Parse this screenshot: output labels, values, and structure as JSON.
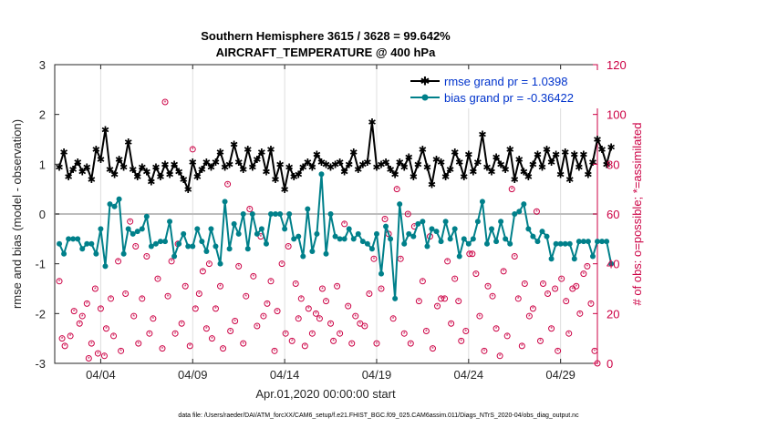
{
  "chart_data": {
    "type": "line",
    "title": "Southern Hemisphere 3615 / 3628 = 99.642%",
    "subtitle": "AIRCRAFT_TEMPERATURE @ 400 hPa",
    "xlabel": "Apr.01,2020 00:00:00 start",
    "ylabel": "rmse and bias (model - observation)",
    "ylabel_right": "# of obs: o=possible; *=assimilated",
    "footer": "data file: /Users/raeder/DAI/ATM_forcXX/CAM6_setup/f.e21.FHIST_BGC.f09_025.CAM6assim.011/Diags_NTrS_2020-04/obs_diag_output.nc",
    "xlim": [
      1.5,
      31.0
    ],
    "ylim": [
      -3,
      3
    ],
    "ylim_right": [
      0,
      120
    ],
    "x_ticks": [
      4,
      9,
      14,
      19,
      24,
      29
    ],
    "x_tick_labels": [
      "04/04",
      "04/09",
      "04/14",
      "04/19",
      "04/24",
      "04/29"
    ],
    "y_ticks": [
      -3,
      -2,
      -1,
      0,
      1,
      2,
      3
    ],
    "y_tick_labels": [
      "-3",
      "-2",
      "-1",
      "0",
      "1",
      "2",
      "3"
    ],
    "y_ticks_right": [
      0,
      20,
      40,
      60,
      80,
      100,
      120
    ],
    "y_tick_labels_right": [
      "0",
      "20",
      "40",
      "60",
      "80",
      "100",
      "120"
    ],
    "x_start": 1.75,
    "x_step": 0.25,
    "series": [
      {
        "name": "rmse grand pr = 1.0398",
        "color": "#000000",
        "marker": "star",
        "values": [
          0.95,
          1.25,
          0.75,
          0.9,
          1.05,
          0.85,
          0.95,
          0.7,
          1.3,
          1.1,
          1.7,
          0.9,
          0.8,
          1.1,
          0.95,
          1.45,
          0.9,
          0.75,
          0.95,
          0.85,
          0.65,
          0.95,
          0.75,
          1.0,
          0.8,
          1.0,
          0.85,
          0.7,
          0.5,
          1.05,
          0.75,
          0.9,
          1.05,
          0.95,
          1.05,
          1.25,
          0.95,
          1.0,
          1.4,
          1.05,
          0.9,
          1.3,
          0.95,
          1.1,
          1.25,
          0.85,
          1.3,
          0.7,
          1.0,
          0.5,
          0.95,
          0.75,
          0.8,
          0.95,
          1.05,
          0.95,
          1.2,
          1.05,
          1.0,
          0.95,
          1.0,
          1.05,
          0.85,
          1.0,
          1.25,
          0.9,
          1.0,
          1.05,
          1.85,
          0.95,
          1.0,
          1.05,
          0.9,
          0.8,
          1.05,
          0.95,
          1.15,
          0.75,
          1.0,
          1.3,
          0.95,
          0.6,
          1.1,
          1.05,
          0.75,
          0.9,
          1.25,
          1.05,
          0.75,
          1.2,
          0.85,
          1.05,
          1.6,
          0.95,
          0.85,
          1.15,
          1.0,
          0.9,
          1.3,
          0.7,
          1.1,
          0.85,
          0.75,
          1.0,
          1.2,
          0.95,
          1.3,
          1.05,
          1.2,
          0.8,
          1.25,
          0.7,
          1.2,
          0.95,
          1.2,
          0.8,
          1.05,
          1.5,
          1.3,
          1.0,
          1.35
        ]
      },
      {
        "name": "bias grand pr = -0.36422",
        "color": "#00808a",
        "marker": "circle",
        "values": [
          -0.6,
          -0.8,
          -0.5,
          -0.5,
          -0.5,
          -0.7,
          -0.6,
          -0.6,
          -0.8,
          -0.3,
          -1.05,
          0.2,
          0.15,
          0.3,
          -0.8,
          -0.3,
          -0.4,
          -0.35,
          -0.3,
          -0.05,
          -0.65,
          -0.6,
          -0.55,
          -0.55,
          -0.15,
          -0.85,
          -0.6,
          -0.4,
          -0.65,
          -0.65,
          -0.3,
          -0.55,
          -0.75,
          -0.3,
          -0.65,
          -1.0,
          0.25,
          -0.7,
          -0.2,
          -0.4,
          0.0,
          -0.7,
          0.0,
          -0.4,
          -0.3,
          -0.6,
          0.0,
          0.0,
          0.0,
          -0.3,
          0.0,
          -0.5,
          -0.45,
          -0.85,
          0.1,
          -0.75,
          -0.4,
          0.8,
          -0.8,
          0.0,
          -0.45,
          -0.5,
          -0.5,
          -0.3,
          -0.5,
          -0.4,
          -0.55,
          -0.6,
          -0.7,
          -0.4,
          -1.2,
          -0.25,
          -0.5,
          -1.7,
          0.2,
          -0.6,
          -0.4,
          -0.45,
          -0.2,
          -0.15,
          -0.65,
          -0.3,
          -0.35,
          -0.55,
          -0.15,
          -0.5,
          -0.3,
          -0.85,
          -0.5,
          -0.6,
          -0.5,
          -0.15,
          0.25,
          -0.6,
          -0.3,
          -0.55,
          -0.15,
          -0.5,
          -0.6,
          0.0,
          0.05,
          0.2,
          -0.3,
          -0.45,
          -0.55,
          -0.35,
          -0.45,
          -0.9,
          -0.6,
          -0.6,
          -0.6,
          -0.6,
          -0.9,
          -0.55,
          -0.55,
          -0.55,
          -0.85,
          -0.55,
          -0.55,
          -0.55,
          -1.0
        ]
      }
    ],
    "obs_possible": [
      [
        1.75,
        33
      ],
      [
        1.9,
        10
      ],
      [
        2.05,
        7
      ],
      [
        2.35,
        11
      ],
      [
        2.55,
        21
      ],
      [
        2.85,
        16
      ],
      [
        3.0,
        19
      ],
      [
        3.25,
        24
      ],
      [
        3.35,
        2
      ],
      [
        3.5,
        8
      ],
      [
        3.7,
        30
      ],
      [
        3.85,
        4
      ],
      [
        4.0,
        22
      ],
      [
        4.2,
        3
      ],
      [
        4.3,
        14
      ],
      [
        4.55,
        26
      ],
      [
        4.7,
        11
      ],
      [
        4.95,
        41
      ],
      [
        5.1,
        5
      ],
      [
        5.35,
        28
      ],
      [
        5.6,
        57
      ],
      [
        5.8,
        19
      ],
      [
        5.9,
        47
      ],
      [
        6.05,
        8
      ],
      [
        6.25,
        26
      ],
      [
        6.5,
        43
      ],
      [
        6.65,
        12
      ],
      [
        6.85,
        18
      ],
      [
        7.1,
        34
      ],
      [
        7.35,
        6
      ],
      [
        7.5,
        105
      ],
      [
        7.65,
        27
      ],
      [
        7.85,
        41
      ],
      [
        8.05,
        12
      ],
      [
        8.2,
        48
      ],
      [
        8.4,
        16
      ],
      [
        8.6,
        31
      ],
      [
        8.85,
        7
      ],
      [
        9.0,
        86
      ],
      [
        9.15,
        22
      ],
      [
        9.35,
        28
      ],
      [
        9.55,
        37
      ],
      [
        9.75,
        14
      ],
      [
        9.9,
        40
      ],
      [
        10.05,
        10
      ],
      [
        10.25,
        22
      ],
      [
        10.5,
        31
      ],
      [
        10.65,
        6
      ],
      [
        10.9,
        72
      ],
      [
        11.05,
        13
      ],
      [
        11.3,
        17
      ],
      [
        11.5,
        39
      ],
      [
        11.75,
        8
      ],
      [
        11.9,
        27
      ],
      [
        12.1,
        62
      ],
      [
        12.3,
        35
      ],
      [
        12.5,
        15
      ],
      [
        12.7,
        51
      ],
      [
        12.85,
        19
      ],
      [
        13.05,
        24
      ],
      [
        13.25,
        33
      ],
      [
        13.45,
        5
      ],
      [
        13.6,
        21
      ],
      [
        13.85,
        40
      ],
      [
        14.05,
        12
      ],
      [
        14.2,
        47
      ],
      [
        14.4,
        9
      ],
      [
        14.6,
        32
      ],
      [
        14.75,
        18
      ],
      [
        14.9,
        26
      ],
      [
        15.1,
        7
      ],
      [
        15.3,
        22
      ],
      [
        15.5,
        12
      ],
      [
        15.7,
        20
      ],
      [
        15.9,
        18
      ],
      [
        16.05,
        30
      ],
      [
        16.25,
        25
      ],
      [
        16.5,
        16
      ],
      [
        16.65,
        9
      ],
      [
        16.85,
        31
      ],
      [
        17.0,
        12
      ],
      [
        17.25,
        56
      ],
      [
        17.45,
        23
      ],
      [
        17.65,
        8
      ],
      [
        17.85,
        19
      ],
      [
        18.1,
        16
      ],
      [
        18.35,
        15
      ],
      [
        18.6,
        28
      ],
      [
        18.85,
        42
      ],
      [
        19.0,
        8
      ],
      [
        19.25,
        30
      ],
      [
        19.45,
        58
      ],
      [
        19.65,
        52
      ],
      [
        19.9,
        18
      ],
      [
        20.1,
        70
      ],
      [
        20.3,
        42
      ],
      [
        20.5,
        12
      ],
      [
        20.7,
        60
      ],
      [
        20.85,
        8
      ],
      [
        21.05,
        55
      ],
      [
        21.3,
        25
      ],
      [
        21.5,
        33
      ],
      [
        21.7,
        13
      ],
      [
        21.9,
        51
      ],
      [
        22.05,
        6
      ],
      [
        22.3,
        23
      ],
      [
        22.5,
        26
      ],
      [
        22.7,
        26
      ],
      [
        22.85,
        41
      ],
      [
        23.05,
        16
      ],
      [
        23.25,
        34
      ],
      [
        23.45,
        25
      ],
      [
        23.6,
        9
      ],
      [
        23.85,
        13
      ],
      [
        24.05,
        44
      ],
      [
        24.2,
        44
      ],
      [
        24.4,
        36
      ],
      [
        24.6,
        19
      ],
      [
        24.85,
        5
      ],
      [
        25.05,
        31
      ],
      [
        25.3,
        27
      ],
      [
        25.5,
        14
      ],
      [
        25.7,
        3
      ],
      [
        25.9,
        37
      ],
      [
        26.1,
        11
      ],
      [
        26.35,
        70
      ],
      [
        26.5,
        43
      ],
      [
        26.7,
        26
      ],
      [
        26.9,
        7
      ],
      [
        27.05,
        32
      ],
      [
        27.3,
        19
      ],
      [
        27.5,
        22
      ],
      [
        27.7,
        61
      ],
      [
        27.9,
        9
      ],
      [
        28.05,
        32
      ],
      [
        28.3,
        28
      ],
      [
        28.5,
        14
      ],
      [
        28.7,
        30
      ],
      [
        28.85,
        5
      ],
      [
        29.05,
        34
      ],
      [
        29.3,
        25
      ],
      [
        29.45,
        12
      ],
      [
        29.65,
        30
      ],
      [
        29.85,
        31
      ],
      [
        30.05,
        20
      ],
      [
        30.25,
        36
      ],
      [
        30.45,
        39
      ],
      [
        30.65,
        24
      ],
      [
        30.85,
        5
      ],
      [
        31.0,
        0
      ]
    ]
  }
}
